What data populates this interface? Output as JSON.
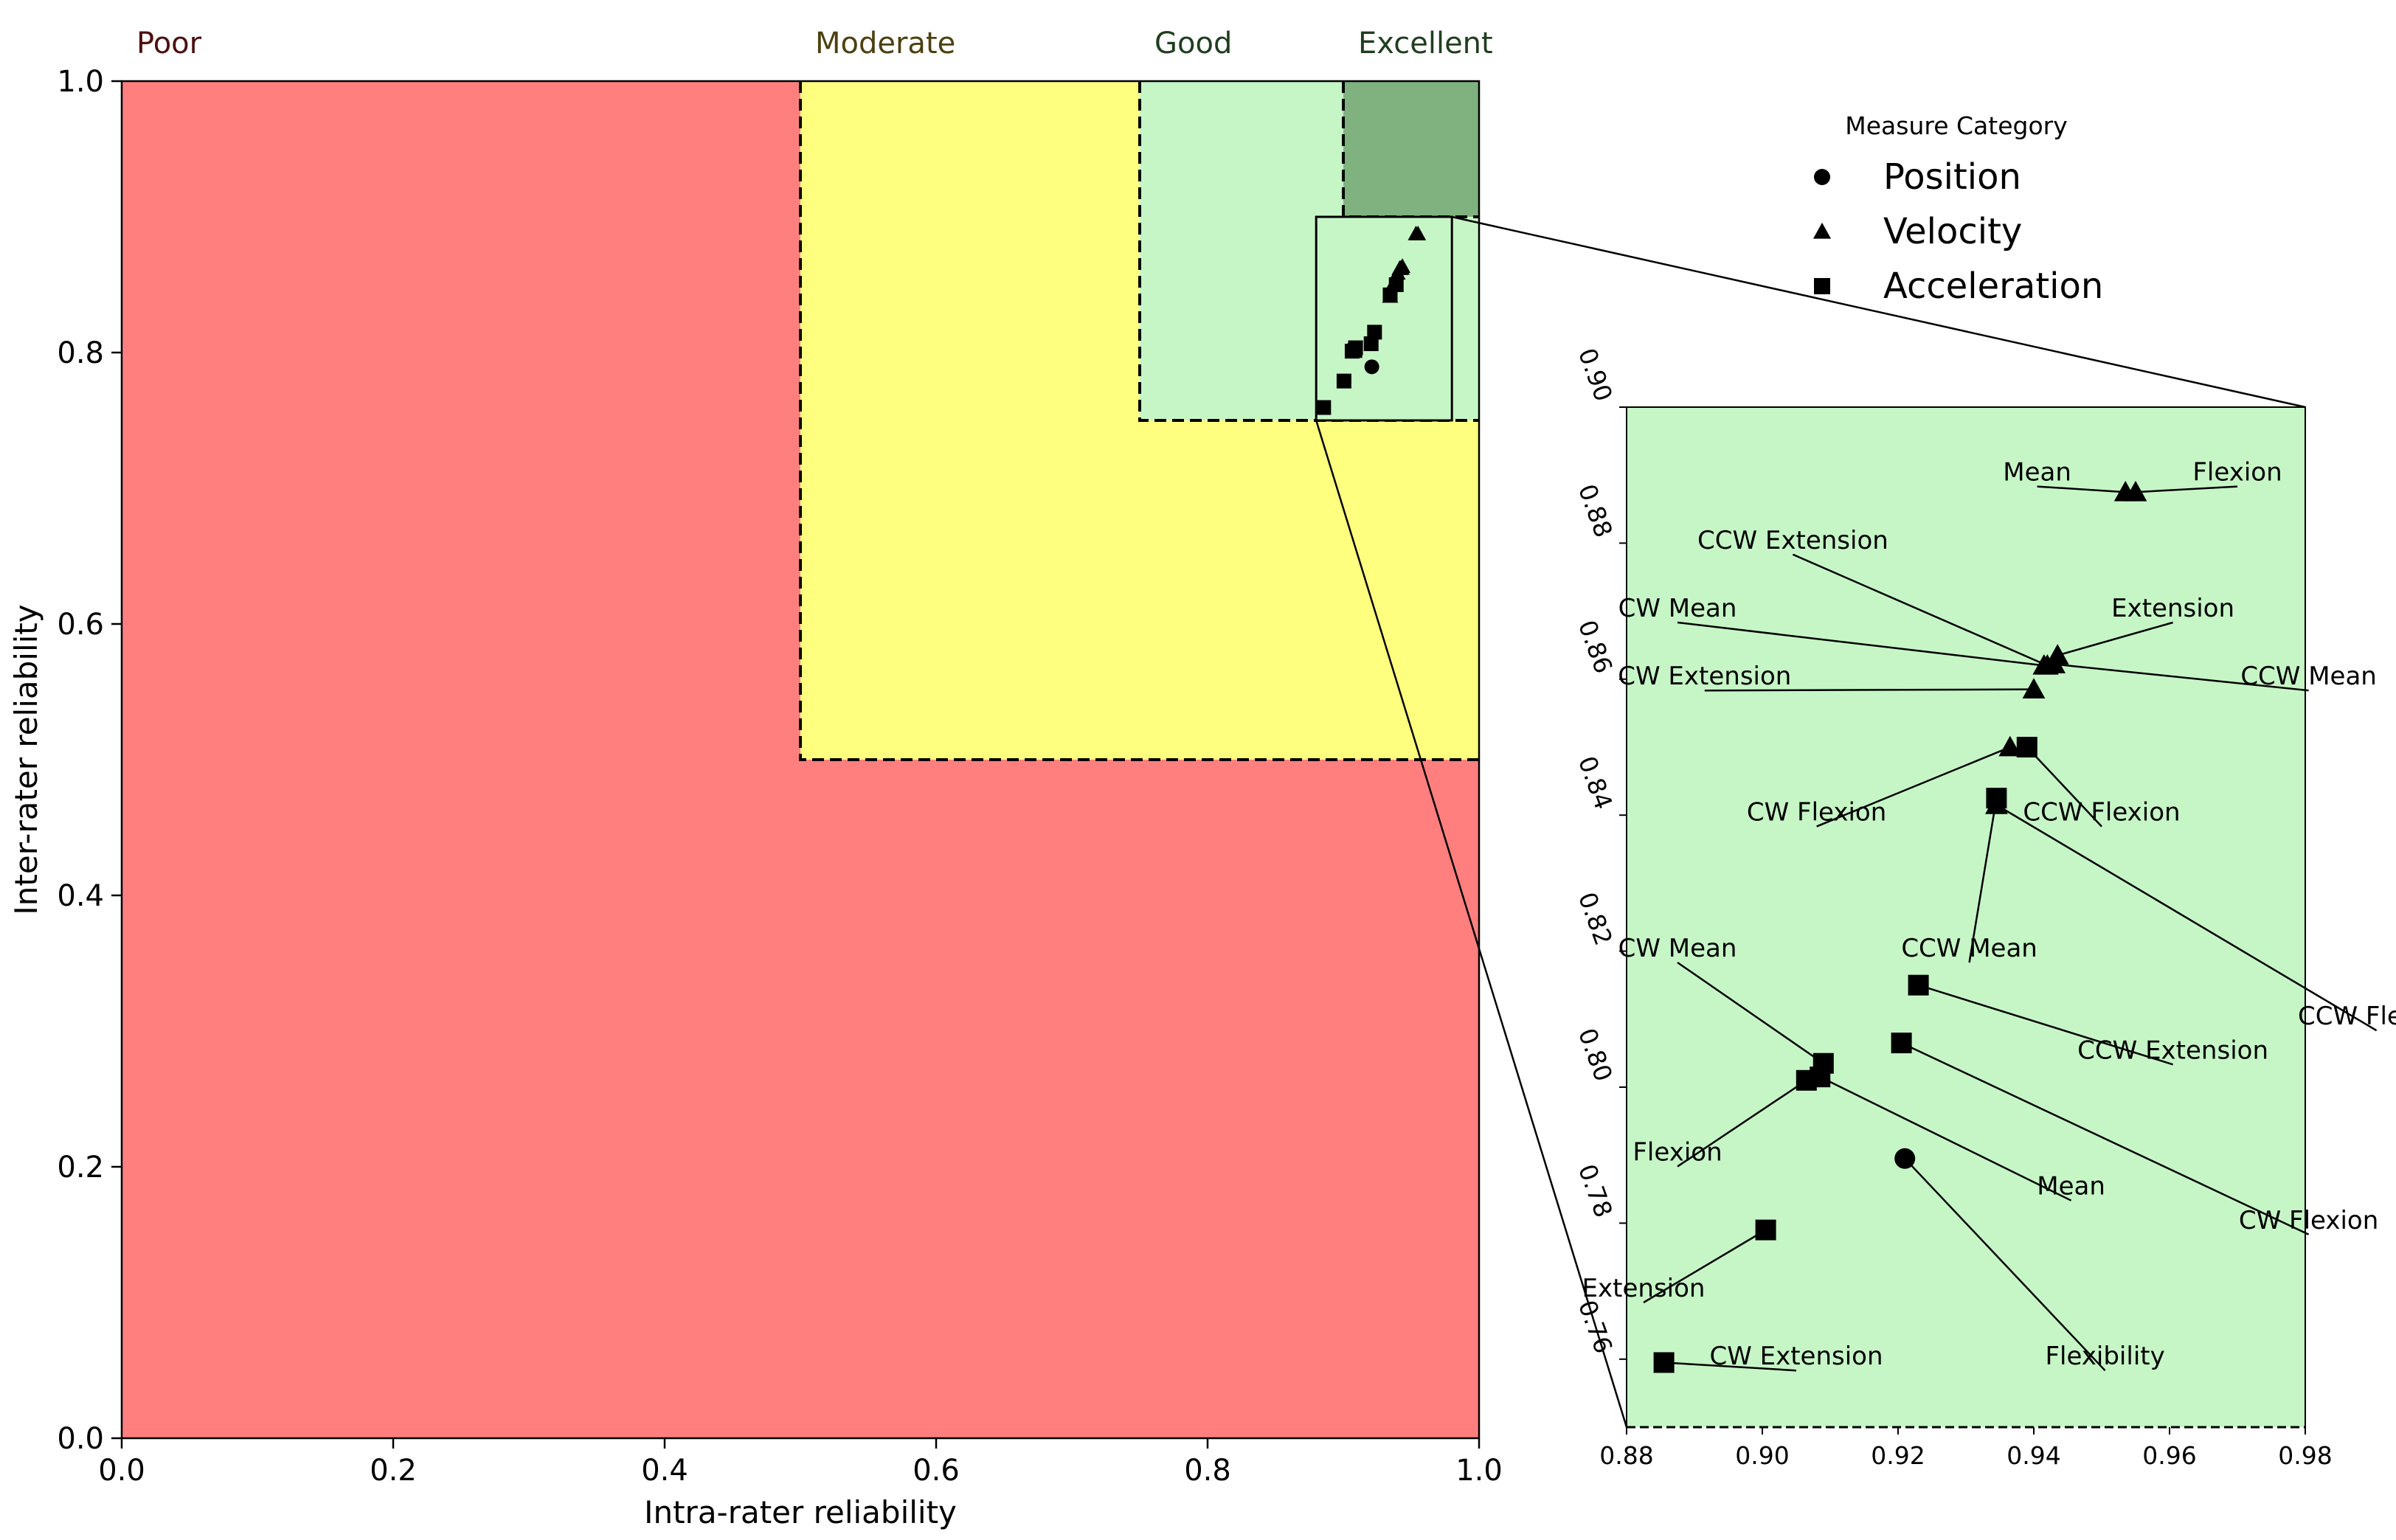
{
  "chart_data": [
    {
      "type": "scatter",
      "panel": "main",
      "xlabel": "Intra-rater reliability",
      "ylabel": "Inter-rater reliability",
      "xlim": [
        0,
        1
      ],
      "ylim": [
        0,
        1
      ],
      "xticks": [
        "0.0",
        "0.2",
        "0.4",
        "0.6",
        "0.8",
        "1.0"
      ],
      "yticks": [
        "0.0",
        "0.2",
        "0.4",
        "0.6",
        "0.8",
        "1.0"
      ],
      "grid": false,
      "zones": [
        {
          "label": "Poor",
          "min": 0.0,
          "color": "#ff7f7f",
          "label_color": "#4d1010"
        },
        {
          "label": "Moderate",
          "min": 0.5,
          "color": "#ffff7f",
          "label_color": "#4d4010"
        },
        {
          "label": "Good",
          "min": 0.75,
          "color": "#c6f6c6",
          "label_color": "#1f3f1f"
        },
        {
          "label": "Excellent",
          "min": 0.9,
          "color": "#7fb27f",
          "label_color": "#1f3f1f"
        }
      ],
      "inset_box": {
        "x": [
          0.88,
          0.98
        ],
        "y": [
          0.75,
          0.9
        ]
      }
    },
    {
      "type": "scatter",
      "panel": "zoom-inset",
      "xlim": [
        0.88,
        0.98
      ],
      "ylim": [
        0.75,
        0.9
      ],
      "xticks": [
        "0.88",
        "0.90",
        "0.92",
        "0.94",
        "0.96",
        "0.98"
      ],
      "yticks": [
        "0.76",
        "0.78",
        "0.80",
        "0.82",
        "0.84",
        "0.86",
        "0.88",
        "0.90"
      ],
      "background": "#c6f6c6",
      "legend": {
        "title": "Measure Category",
        "position": "upper-right",
        "entries": [
          {
            "label": "Position",
            "marker": "circle"
          },
          {
            "label": "Velocity",
            "marker": "triangle"
          },
          {
            "label": "Acceleration",
            "marker": "square"
          }
        ]
      },
      "points": [
        {
          "label": "Mean",
          "category": "Velocity",
          "x": 0.9535,
          "y": 0.8875,
          "lx": 0.9405,
          "ly": 0.8905
        },
        {
          "label": "Flexion",
          "category": "Velocity",
          "x": 0.955,
          "y": 0.8875,
          "lx": 0.97,
          "ly": 0.8905
        },
        {
          "label": "CCW Extension",
          "category": "Velocity",
          "x": 0.942,
          "y": 0.862,
          "lx": 0.9045,
          "ly": 0.8805
        },
        {
          "label": "Extension",
          "category": "Velocity",
          "x": 0.9435,
          "y": 0.8635,
          "lx": 0.9605,
          "ly": 0.8705
        },
        {
          "label": "CW Mean",
          "category": "Velocity",
          "x": 0.9415,
          "y": 0.862,
          "lx": 0.8875,
          "ly": 0.8705
        },
        {
          "label": "CCW Mean",
          "category": "Velocity",
          "x": 0.943,
          "y": 0.8622,
          "lx": 0.9805,
          "ly": 0.8605
        },
        {
          "label": "CW Extension",
          "category": "Velocity",
          "x": 0.94,
          "y": 0.8585,
          "lx": 0.8915,
          "ly": 0.8605
        },
        {
          "label": "CW Flexion",
          "category": "Velocity",
          "x": 0.9365,
          "y": 0.85,
          "lx": 0.908,
          "ly": 0.8405
        },
        {
          "label": "CCW Flexion",
          "category": "Acceleration",
          "x": 0.939,
          "y": 0.85,
          "lx": 0.95,
          "ly": 0.8405
        },
        {
          "label": "CCW Mean",
          "category": "Acceleration",
          "x": 0.9345,
          "y": 0.8425,
          "lx": 0.9305,
          "ly": 0.8205
        },
        {
          "label": "CCW Flexion",
          "category": "Velocity",
          "x": 0.9345,
          "y": 0.8415,
          "lx": 0.9905,
          "ly": 0.8105
        },
        {
          "label": "CCW Extension",
          "category": "Acceleration",
          "x": 0.923,
          "y": 0.815,
          "lx": 0.9605,
          "ly": 0.8055
        },
        {
          "label": "CW Flexion",
          "category": "Acceleration",
          "x": 0.9205,
          "y": 0.8065,
          "lx": 0.9805,
          "ly": 0.7805
        },
        {
          "label": "CW Mean",
          "category": "Acceleration",
          "x": 0.909,
          "y": 0.8035,
          "lx": 0.8875,
          "ly": 0.8205
        },
        {
          "label": "Mean",
          "category": "Acceleration",
          "x": 0.9085,
          "y": 0.8015,
          "lx": 0.9455,
          "ly": 0.7855
        },
        {
          "label": "Flexion",
          "category": "Acceleration",
          "x": 0.9065,
          "y": 0.801,
          "lx": 0.8875,
          "ly": 0.7905
        },
        {
          "label": "Flexibility",
          "category": "Position",
          "x": 0.921,
          "y": 0.7895,
          "lx": 0.9505,
          "ly": 0.7605
        },
        {
          "label": "Extension",
          "category": "Acceleration",
          "x": 0.9005,
          "y": 0.779,
          "lx": 0.8825,
          "ly": 0.7705
        },
        {
          "label": "CW Extension",
          "category": "Acceleration",
          "x": 0.8855,
          "y": 0.7595,
          "lx": 0.905,
          "ly": 0.7605
        }
      ]
    }
  ]
}
